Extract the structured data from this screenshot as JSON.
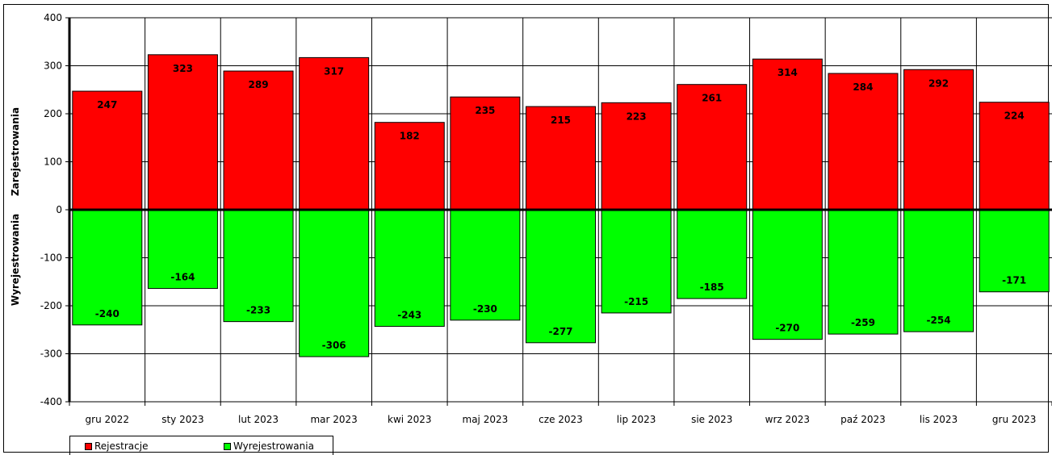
{
  "chart_data": {
    "type": "bar",
    "categories": [
      "gru 2022",
      "sty 2023",
      "lut 2023",
      "mar 2023",
      "kwi 2023",
      "maj 2023",
      "cze 2023",
      "lip 2023",
      "sie 2023",
      "wrz 2023",
      "paź 2023",
      "lis 2023",
      "gru 2023"
    ],
    "series": [
      {
        "name": "Rejestracje",
        "color": "#ff0000",
        "values": [
          247,
          323,
          289,
          317,
          182,
          235,
          215,
          223,
          261,
          314,
          284,
          292,
          224
        ]
      },
      {
        "name": "Wyrejestrowania",
        "color": "#00ff00",
        "values": [
          -240,
          -164,
          -233,
          -306,
          -243,
          -230,
          -277,
          -215,
          -185,
          -270,
          -259,
          -254,
          -171
        ]
      }
    ],
    "ylabel_top": "Zarejestrowania",
    "ylabel_bottom": "Wyrejestrowania",
    "ylim": [
      -400,
      400
    ],
    "yticks": [
      -400,
      -300,
      -200,
      -100,
      0,
      100,
      200,
      300,
      400
    ],
    "grid": true,
    "legend_position": "bottom-left"
  }
}
